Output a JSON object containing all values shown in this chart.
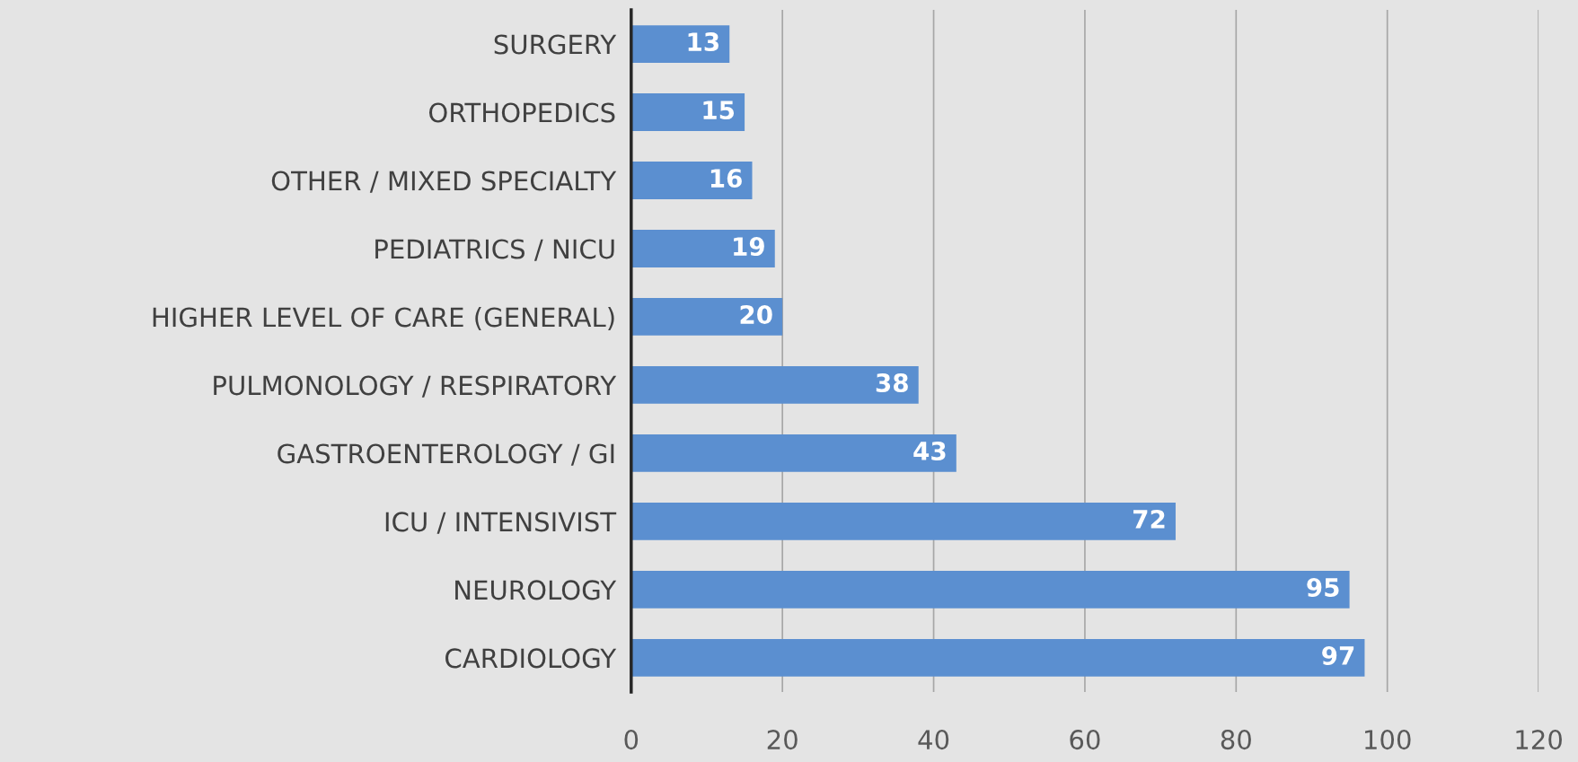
{
  "chart_data": {
    "type": "bar",
    "orientation": "horizontal",
    "categories": [
      "SURGERY",
      "ORTHOPEDICS",
      "OTHER / MIXED SPECIALTY",
      "PEDIATRICS / NICU",
      "HIGHER LEVEL OF CARE (GENERAL)",
      "PULMONOLOGY / RESPIRATORY",
      "GASTROENTEROLOGY / GI",
      "ICU / INTENSIVIST",
      "NEUROLOGY",
      "CARDIOLOGY"
    ],
    "values": [
      13,
      15,
      16,
      19,
      20,
      38,
      43,
      72,
      95,
      97
    ],
    "color": "#5b8fd0",
    "xlim": [
      0,
      120
    ],
    "xticks": [
      0,
      20,
      40,
      60,
      80,
      100,
      120
    ],
    "grid": "x",
    "data_labels": true
  }
}
